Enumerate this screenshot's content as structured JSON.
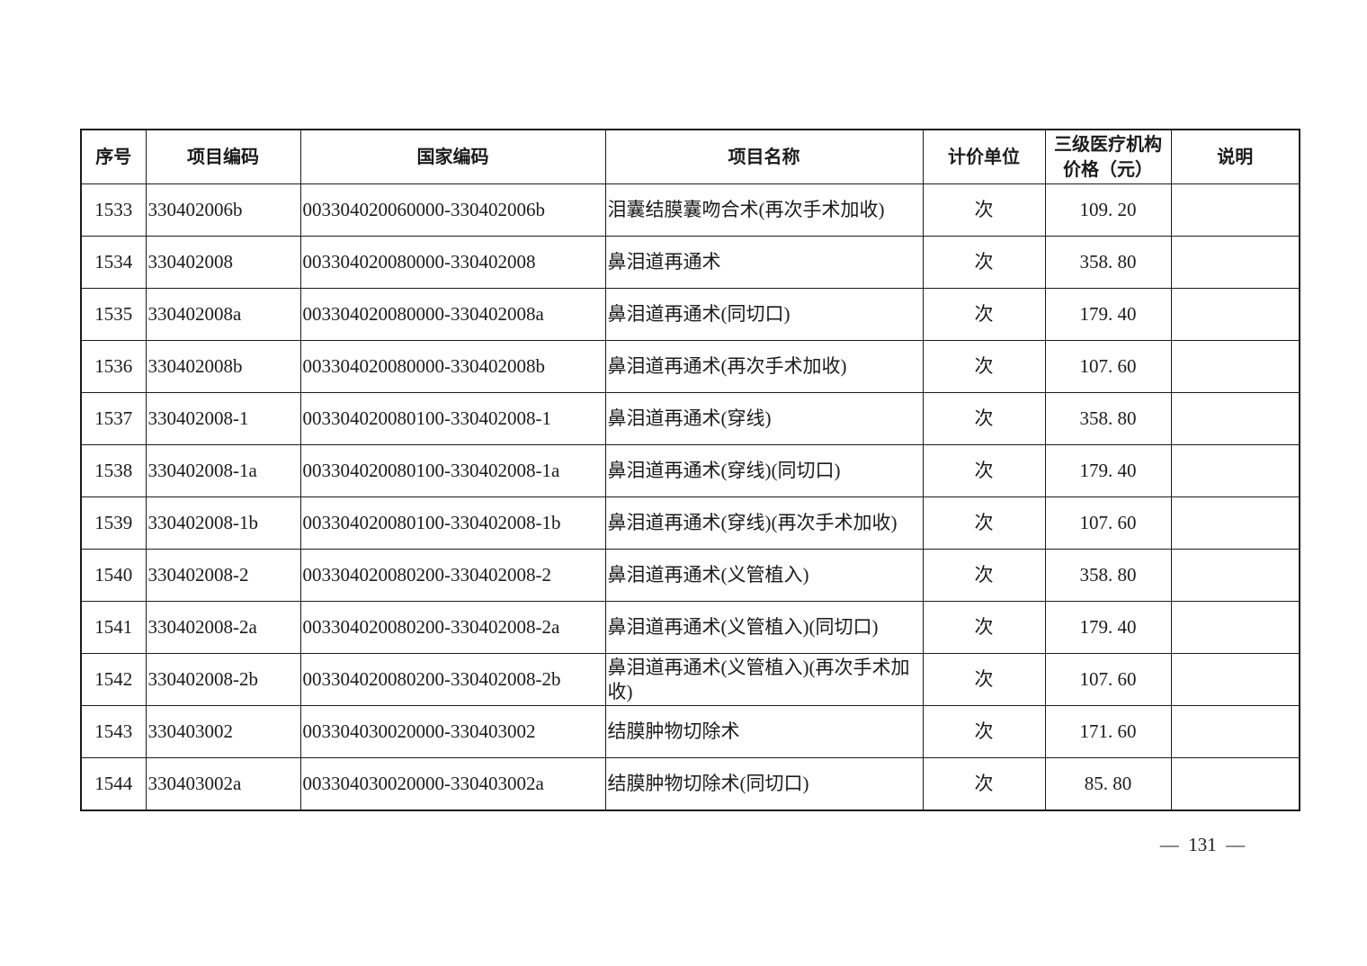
{
  "page": {
    "page_number": "131",
    "page_number_display": "—  131  —"
  },
  "colors": {
    "border": "#1b1b1b",
    "text": "#1b1b1b",
    "background": "#ffffff"
  },
  "table": {
    "headers": [
      "序号",
      "项目编码",
      "国家编码",
      "项目名称",
      "计价单位",
      "三级医疗机构\n价格（元）",
      "说明"
    ],
    "rows": [
      {
        "seq": "1533",
        "code": "330402006b",
        "national_code": "003304020060000-330402006b",
        "name": "泪囊结膜囊吻合术(再次手术加收)",
        "unit": "次",
        "price": "109. 20",
        "note": ""
      },
      {
        "seq": "1534",
        "code": "330402008",
        "national_code": "003304020080000-330402008",
        "name": "鼻泪道再通术",
        "unit": "次",
        "price": "358. 80",
        "note": ""
      },
      {
        "seq": "1535",
        "code": "330402008a",
        "national_code": "003304020080000-330402008a",
        "name": "鼻泪道再通术(同切口)",
        "unit": "次",
        "price": "179. 40",
        "note": ""
      },
      {
        "seq": "1536",
        "code": "330402008b",
        "national_code": "003304020080000-330402008b",
        "name": "鼻泪道再通术(再次手术加收)",
        "unit": "次",
        "price": "107. 60",
        "note": ""
      },
      {
        "seq": "1537",
        "code": "330402008-1",
        "national_code": "003304020080100-330402008-1",
        "name": "鼻泪道再通术(穿线)",
        "unit": "次",
        "price": "358. 80",
        "note": ""
      },
      {
        "seq": "1538",
        "code": "330402008-1a",
        "national_code": "003304020080100-330402008-1a",
        "name": "鼻泪道再通术(穿线)(同切口)",
        "unit": "次",
        "price": "179. 40",
        "note": ""
      },
      {
        "seq": "1539",
        "code": "330402008-1b",
        "national_code": "003304020080100-330402008-1b",
        "name": "鼻泪道再通术(穿线)(再次手术加收)",
        "unit": "次",
        "price": "107. 60",
        "note": ""
      },
      {
        "seq": "1540",
        "code": "330402008-2",
        "national_code": "003304020080200-330402008-2",
        "name": "鼻泪道再通术(义管植入)",
        "unit": "次",
        "price": "358. 80",
        "note": ""
      },
      {
        "seq": "1541",
        "code": "330402008-2a",
        "national_code": "003304020080200-330402008-2a",
        "name": "鼻泪道再通术(义管植入)(同切口)",
        "unit": "次",
        "price": "179. 40",
        "note": ""
      },
      {
        "seq": "1542",
        "code": "330402008-2b",
        "national_code": "003304020080200-330402008-2b",
        "name": "鼻泪道再通术(义管植入)(再次手术加收)",
        "unit": "次",
        "price": "107. 60",
        "note": ""
      },
      {
        "seq": "1543",
        "code": "330403002",
        "national_code": "003304030020000-330403002",
        "name": "结膜肿物切除术",
        "unit": "次",
        "price": "171. 60",
        "note": ""
      },
      {
        "seq": "1544",
        "code": "330403002a",
        "national_code": "003304030020000-330403002a",
        "name": "结膜肿物切除术(同切口)",
        "unit": "次",
        "price": "85. 80",
        "note": ""
      }
    ]
  }
}
